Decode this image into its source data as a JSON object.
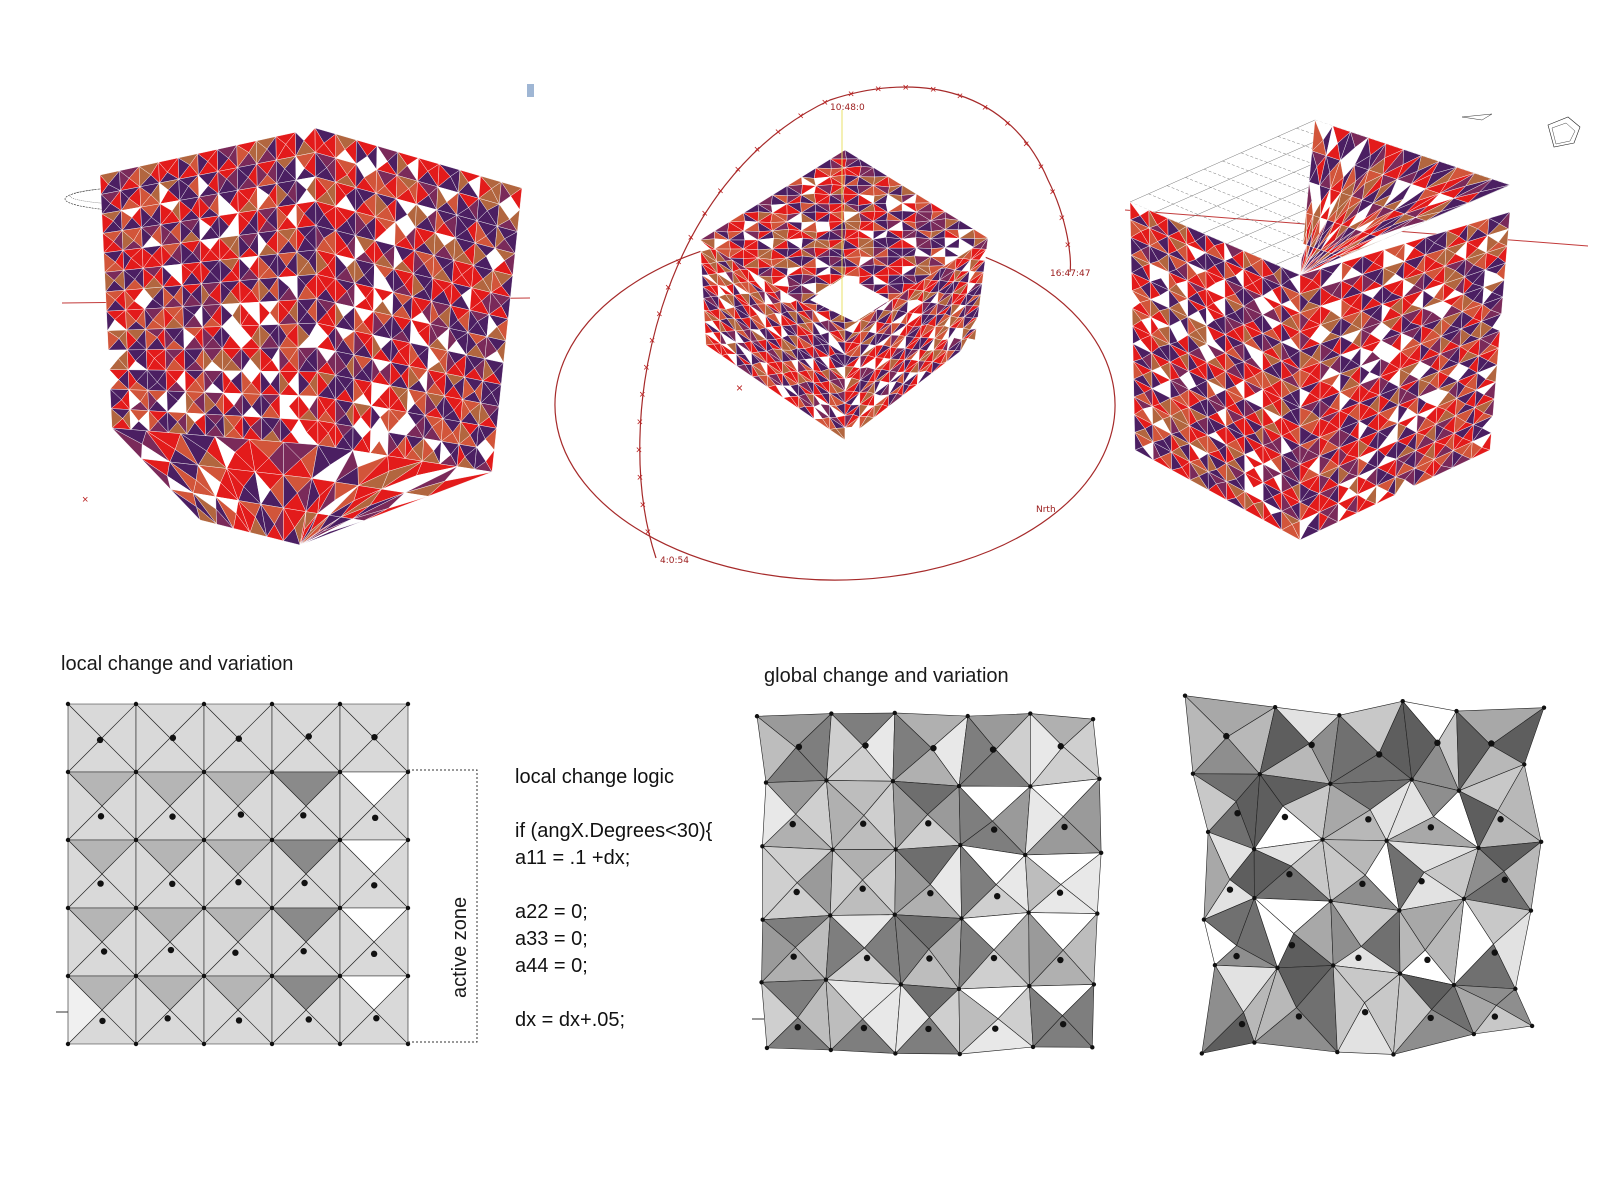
{
  "panels": {
    "local_title": "local change and variation",
    "global_title": "global change and variation",
    "zone_label": "active zone",
    "logic_title": "local change logic",
    "code_lines": [
      "if (angX.Degrees<30){",
      "a11 = .1 +dx;",
      "",
      "a22 = 0;",
      "a33 = 0;",
      "a44 = 0;",
      "",
      "dx = dx+.05;"
    ]
  },
  "sun_path": {
    "labels": [
      "10:48:0",
      "16:47:47",
      "Nrth",
      "4:0:54"
    ]
  },
  "colors": {
    "red": "#e31b1b",
    "purple": "#4b1f62",
    "brown": "#b2663f",
    "orbit": "#a62a2a",
    "grey_light": "#d6d6d6",
    "grey_mid": "#a5a5a5",
    "grey_dark": "#6a6a6a"
  }
}
